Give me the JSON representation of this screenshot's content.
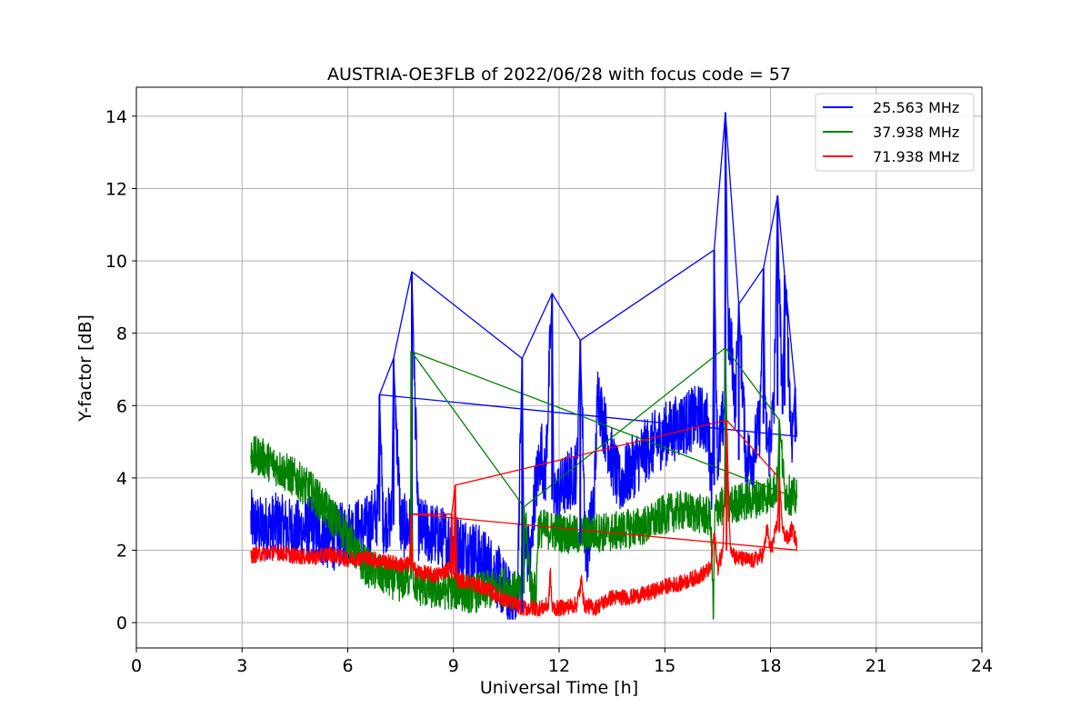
{
  "chart_data": {
    "type": "line",
    "title": "AUSTRIA-OE3FLB of 2022/06/28 with focus code = 57",
    "xlabel": "Universal Time [h]",
    "ylabel": "Y-factor [dB]",
    "xlim": [
      0,
      24
    ],
    "ylim": [
      -0.7,
      14.8
    ],
    "xticks": [
      0,
      3,
      6,
      9,
      12,
      15,
      18,
      21,
      24
    ],
    "yticks": [
      0,
      2,
      4,
      6,
      8,
      10,
      12,
      14
    ],
    "grid": true,
    "legend_position": "top-right",
    "series": [
      {
        "name": "25.563 MHz",
        "color": "#0000ff",
        "noise": 0.9,
        "x": [
          3.25,
          3.5,
          4.0,
          4.5,
          5.0,
          5.5,
          6.0,
          6.5,
          6.85,
          6.9,
          7.0,
          7.25,
          7.3,
          7.5,
          7.8,
          7.82,
          8.0,
          8.5,
          9.0,
          9.5,
          10.0,
          10.3,
          10.5,
          10.8,
          10.95,
          11.0,
          11.2,
          11.3,
          11.5,
          11.6,
          11.8,
          11.85,
          12.0,
          12.5,
          12.6,
          12.75,
          12.8,
          13.0,
          13.1,
          13.2,
          13.5,
          13.7,
          14.0,
          14.5,
          15.0,
          15.5,
          16.0,
          16.2,
          16.35,
          16.4,
          16.5,
          16.6,
          16.7,
          16.72,
          16.8,
          16.9,
          17.0,
          17.1,
          17.3,
          17.5,
          17.7,
          17.8,
          17.85,
          17.95,
          18.1,
          18.2,
          18.25,
          18.35,
          18.4,
          18.5,
          18.6,
          18.7,
          18.75
        ],
        "y": [
          2.8,
          2.6,
          2.7,
          2.5,
          2.6,
          2.3,
          2.5,
          2.6,
          3.0,
          6.3,
          2.8,
          2.9,
          7.3,
          2.7,
          2.6,
          9.7,
          2.6,
          2.4,
          2.2,
          2.0,
          1.6,
          1.2,
          0.8,
          0.3,
          7.3,
          2.0,
          1.8,
          3.5,
          4.8,
          3.8,
          9.1,
          3.4,
          3.6,
          4.2,
          7.8,
          2.2,
          2.0,
          3.5,
          6.5,
          5.8,
          4.5,
          3.8,
          4.2,
          4.8,
          5.2,
          5.5,
          5.7,
          5.5,
          3.8,
          10.3,
          4.5,
          5.2,
          6.0,
          14.1,
          8.0,
          7.5,
          6.0,
          8.8,
          4.5,
          4.6,
          5.5,
          9.8,
          5.5,
          4.8,
          6.0,
          11.8,
          9.0,
          6.0,
          9.6,
          7.5,
          5.0,
          6.5,
          5.0
        ]
      },
      {
        "name": "37.938 MHz",
        "color": "#008000",
        "noise": 0.55,
        "x": [
          3.25,
          3.5,
          4.0,
          4.5,
          5.0,
          5.5,
          6.0,
          6.3,
          6.6,
          7.0,
          7.5,
          7.78,
          7.8,
          7.85,
          8.0,
          8.5,
          9.0,
          9.5,
          10.0,
          10.5,
          10.9,
          11.0,
          11.2,
          11.35,
          11.4,
          11.5,
          12.0,
          12.5,
          13.0,
          13.5,
          14.0,
          14.5,
          15.0,
          15.5,
          16.0,
          16.3,
          16.38,
          16.42,
          16.5,
          16.7,
          16.72,
          16.8,
          17.0,
          17.5,
          17.8,
          18.0,
          18.2,
          18.25,
          18.4,
          18.6,
          18.75
        ],
        "y": [
          4.6,
          4.6,
          4.3,
          4.0,
          3.6,
          3.0,
          2.4,
          1.8,
          1.5,
          1.3,
          1.1,
          1.3,
          7.5,
          1.2,
          1.0,
          0.9,
          0.9,
          0.8,
          0.9,
          1.0,
          0.8,
          3.2,
          1.0,
          0.8,
          2.6,
          2.6,
          2.5,
          2.4,
          2.5,
          2.5,
          2.6,
          2.7,
          3.0,
          3.1,
          3.0,
          2.9,
          0.1,
          3.0,
          3.2,
          3.2,
          7.6,
          3.2,
          3.3,
          3.4,
          3.5,
          3.6,
          3.8,
          5.6,
          3.6,
          3.5,
          3.4
        ]
      },
      {
        "name": "71.938 MHz",
        "color": "#ff0000",
        "noise": 0.22,
        "x": [
          3.25,
          3.5,
          4.0,
          4.5,
          5.0,
          5.5,
          6.0,
          6.5,
          7.0,
          7.5,
          7.75,
          7.8,
          7.85,
          8.0,
          8.5,
          8.9,
          8.95,
          9.0,
          9.05,
          9.1,
          9.5,
          10.0,
          10.5,
          11.0,
          11.5,
          11.7,
          11.75,
          11.8,
          12.0,
          12.5,
          12.65,
          12.7,
          13.0,
          13.5,
          14.0,
          14.5,
          15.0,
          15.5,
          16.0,
          16.3,
          16.4,
          16.5,
          16.65,
          16.75,
          16.85,
          17.0,
          17.5,
          17.8,
          17.9,
          18.0,
          18.1,
          18.2,
          18.25,
          18.35,
          18.5,
          18.6,
          18.75
        ],
        "y": [
          1.85,
          1.9,
          1.95,
          1.85,
          1.8,
          1.9,
          1.75,
          1.8,
          1.7,
          1.6,
          1.6,
          3.0,
          1.5,
          1.4,
          1.3,
          1.5,
          3.0,
          1.2,
          3.8,
          1.2,
          1.1,
          0.9,
          0.6,
          0.4,
          0.4,
          0.5,
          1.4,
          0.4,
          0.4,
          0.5,
          1.2,
          0.5,
          0.4,
          0.7,
          0.7,
          0.8,
          1.0,
          1.1,
          1.3,
          1.5,
          2.5,
          1.5,
          2.0,
          5.6,
          2.2,
          1.8,
          1.7,
          1.9,
          2.6,
          2.0,
          2.3,
          2.8,
          4.0,
          2.5,
          2.3,
          2.6,
          2.2
        ]
      }
    ]
  }
}
